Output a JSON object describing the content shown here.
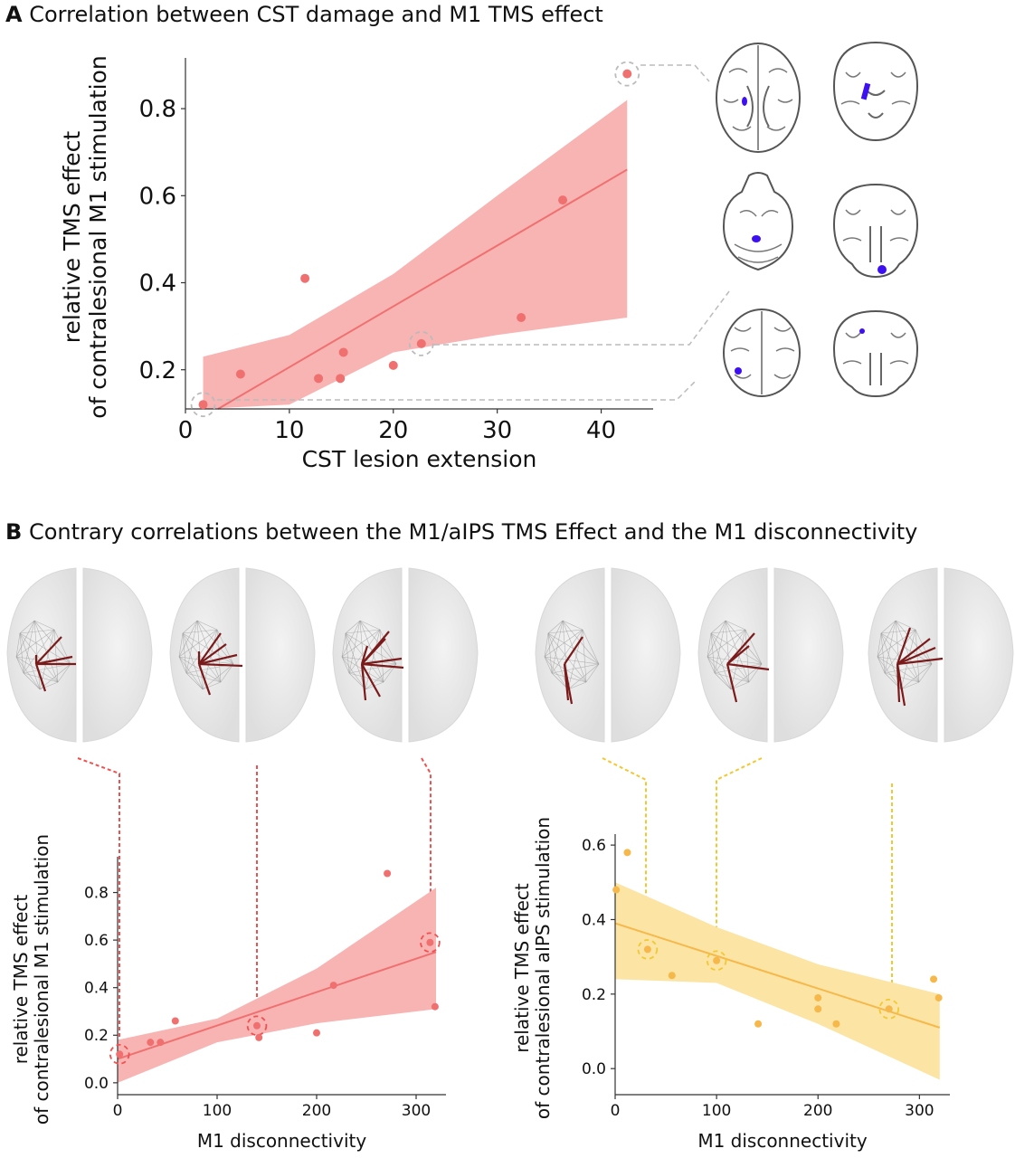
{
  "panel_a": {
    "letter": "A",
    "title": "Correlation between CST damage and M1 TMS effect"
  },
  "panel_b": {
    "letter": "B",
    "title": "Contrary correlations between the M1/aIPS TMS Effect and the M1 disconnectivity"
  },
  "colors": {
    "red_point": "#f07070",
    "red_band": "#f8b3b3",
    "red_line": "#f07070",
    "red_dash": "#f0504f",
    "yellow_point": "#f6b84a",
    "yellow_band": "#fbe4a4",
    "yellow_line": "#f6b84a",
    "yellow_dash": "#f2c832",
    "lesion": "#3c10f0",
    "fiber_dark": "#7a1a1a"
  },
  "chart_data": [
    {
      "id": "A",
      "type": "scatter",
      "xlabel": "CST lesion extension",
      "ylabel_lines": [
        "relative TMS effect",
        "of contralesional M1 stimulation"
      ],
      "xlim": [
        0,
        45
      ],
      "ylim": [
        0.11,
        0.9
      ],
      "xticks": [
        0,
        10,
        20,
        30,
        40
      ],
      "yticks": [
        0.2,
        0.4,
        0.6,
        0.8
      ],
      "points": [
        {
          "x": 1.7,
          "y": 0.12
        },
        {
          "x": 5.3,
          "y": 0.19
        },
        {
          "x": 11.5,
          "y": 0.41
        },
        {
          "x": 12.8,
          "y": 0.18
        },
        {
          "x": 14.9,
          "y": 0.18
        },
        {
          "x": 15.2,
          "y": 0.24
        },
        {
          "x": 20.0,
          "y": 0.21
        },
        {
          "x": 22.7,
          "y": 0.26
        },
        {
          "x": 32.3,
          "y": 0.32
        },
        {
          "x": 36.3,
          "y": 0.59
        },
        {
          "x": 42.5,
          "y": 0.88
        }
      ],
      "highlighted": [
        0,
        7,
        10
      ],
      "regression": {
        "x": [
          1.7,
          42.5
        ],
        "y": [
          0.09,
          0.66
        ]
      },
      "band": {
        "x": [
          1.7,
          10,
          20,
          30,
          42.5
        ],
        "upper": [
          0.23,
          0.28,
          0.42,
          0.6,
          0.82
        ],
        "lower": [
          -0.05,
          0.12,
          0.24,
          0.28,
          0.32
        ]
      }
    },
    {
      "id": "B-left",
      "type": "scatter",
      "xlabel": "M1 disconnectivity",
      "ylabel_lines": [
        "relative TMS effect",
        "of contralesional M1 stimulation"
      ],
      "xlim": [
        0,
        330
      ],
      "ylim": [
        -0.05,
        0.92
      ],
      "xticks": [
        0,
        100,
        200,
        300
      ],
      "yticks": [
        0.0,
        0.2,
        0.4,
        0.6,
        0.8
      ],
      "points": [
        {
          "x": 2,
          "y": 0.12
        },
        {
          "x": 33,
          "y": 0.17
        },
        {
          "x": 43,
          "y": 0.17
        },
        {
          "x": 58,
          "y": 0.26
        },
        {
          "x": 140,
          "y": 0.24
        },
        {
          "x": 142,
          "y": 0.19
        },
        {
          "x": 200,
          "y": 0.21
        },
        {
          "x": 217,
          "y": 0.41
        },
        {
          "x": 271,
          "y": 0.88
        },
        {
          "x": 314,
          "y": 0.59
        },
        {
          "x": 319,
          "y": 0.32
        }
      ],
      "highlighted": [
        0,
        4,
        9
      ],
      "regression": {
        "x": [
          0,
          320
        ],
        "y": [
          0.1,
          0.55
        ]
      },
      "band": {
        "x": [
          0,
          100,
          200,
          320
        ],
        "upper": [
          0.18,
          0.27,
          0.48,
          0.82
        ],
        "lower": [
          0.0,
          0.17,
          0.25,
          0.31
        ]
      }
    },
    {
      "id": "B-right",
      "type": "scatter",
      "xlabel": "M1 disconnectivity",
      "ylabel_lines": [
        "relative TMS effect",
        "of contralesional aIPS stimulation"
      ],
      "xlim": [
        0,
        330
      ],
      "ylim": [
        -0.07,
        0.61
      ],
      "xticks": [
        0,
        100,
        200,
        300
      ],
      "yticks": [
        0.0,
        0.2,
        0.4,
        0.6
      ],
      "points": [
        {
          "x": 1,
          "y": 0.48
        },
        {
          "x": 12,
          "y": 0.58
        },
        {
          "x": 32,
          "y": 0.32
        },
        {
          "x": 56,
          "y": 0.25
        },
        {
          "x": 100,
          "y": 0.29
        },
        {
          "x": 141,
          "y": 0.12
        },
        {
          "x": 200,
          "y": 0.19
        },
        {
          "x": 200,
          "y": 0.16
        },
        {
          "x": 218,
          "y": 0.12
        },
        {
          "x": 270,
          "y": 0.16
        },
        {
          "x": 314,
          "y": 0.24
        },
        {
          "x": 319,
          "y": 0.19
        }
      ],
      "highlighted": [
        2,
        4,
        9
      ],
      "regression": {
        "x": [
          0,
          320
        ],
        "y": [
          0.39,
          0.11
        ]
      },
      "band": {
        "x": [
          0,
          100,
          200,
          320
        ],
        "upper": [
          0.5,
          0.38,
          0.28,
          0.2
        ],
        "lower": [
          0.24,
          0.23,
          0.12,
          -0.03
        ]
      }
    }
  ]
}
